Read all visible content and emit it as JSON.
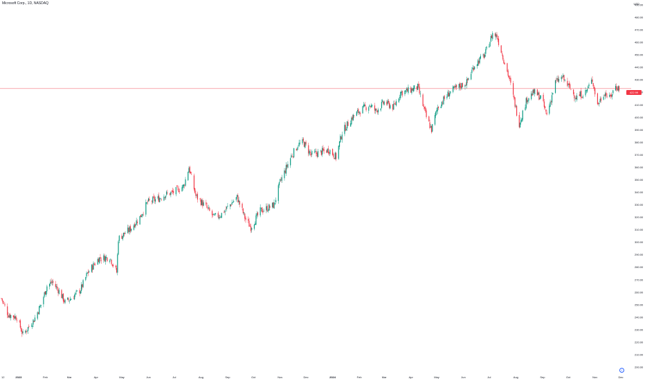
{
  "header": {
    "title": "Microsoft Corp., 1D, NASDAQ",
    "currency": "USD"
  },
  "last_price_label": "422.99",
  "scroll_button_icon": "arrow-right-icon",
  "colors": {
    "up": "#089981",
    "down": "#f23645",
    "price_line": "#f23645",
    "text": "#131722"
  },
  "chart_data": {
    "type": "candlestick",
    "ylim": [
      200,
      490
    ],
    "y_ticks": [
      "490.00",
      "480.00",
      "470.00",
      "460.00",
      "450.00",
      "440.00",
      "430.00",
      "420.00",
      "410.00",
      "400.00",
      "390.00",
      "380.00",
      "370.00",
      "360.00",
      "350.00",
      "340.00",
      "330.00",
      "320.00",
      "310.00",
      "300.00",
      "290.00",
      "280.00",
      "270.00",
      "260.00",
      "250.00",
      "240.00",
      "230.00",
      "220.00",
      "210.00",
      "200.00"
    ],
    "x_ticks": [
      "12",
      "2023",
      "Feb",
      "Mar",
      "Apr",
      "May",
      "Jun",
      "Jul",
      "Aug",
      "Sep",
      "Oct",
      "Nov",
      "Dec",
      "2024",
      "Feb",
      "Mar",
      "Apr",
      "May",
      "Jun",
      "Jul",
      "Aug",
      "Sep",
      "Oct",
      "Nov",
      "Dec"
    ],
    "last_price": 422.99,
    "trend": [
      [
        "2022-12-12",
        255
      ],
      [
        "2022-12-20",
        242
      ],
      [
        "2022-12-30",
        240
      ],
      [
        "2023-01-06",
        226
      ],
      [
        "2023-01-19",
        238
      ],
      [
        "2023-01-27",
        250
      ],
      [
        "2023-02-03",
        265
      ],
      [
        "2023-02-09",
        268
      ],
      [
        "2023-02-16",
        262
      ],
      [
        "2023-02-24",
        252
      ],
      [
        "2023-03-03",
        255
      ],
      [
        "2023-03-14",
        262
      ],
      [
        "2023-03-22",
        275
      ],
      [
        "2023-04-04",
        287
      ],
      [
        "2023-04-17",
        288
      ],
      [
        "2023-04-25",
        276
      ],
      [
        "2023-04-27",
        303
      ],
      [
        "2023-05-10",
        310
      ],
      [
        "2023-05-22",
        320
      ],
      [
        "2023-05-31",
        332
      ],
      [
        "2023-06-13",
        335
      ],
      [
        "2023-06-20",
        338
      ],
      [
        "2023-06-30",
        340
      ],
      [
        "2023-07-12",
        345
      ],
      [
        "2023-07-18",
        360
      ],
      [
        "2023-07-26",
        337
      ],
      [
        "2023-08-07",
        328
      ],
      [
        "2023-08-16",
        320
      ],
      [
        "2023-08-24",
        322
      ],
      [
        "2023-09-01",
        328
      ],
      [
        "2023-09-12",
        336
      ],
      [
        "2023-09-22",
        318
      ],
      [
        "2023-09-28",
        312
      ],
      [
        "2023-10-09",
        325
      ],
      [
        "2023-10-20",
        328
      ],
      [
        "2023-10-25",
        330
      ],
      [
        "2023-11-01",
        348
      ],
      [
        "2023-11-14",
        369
      ],
      [
        "2023-11-22",
        378
      ],
      [
        "2023-11-28",
        380
      ],
      [
        "2023-12-07",
        370
      ],
      [
        "2023-12-18",
        372
      ],
      [
        "2023-12-28",
        374
      ],
      [
        "2024-01-05",
        368
      ],
      [
        "2024-01-12",
        388
      ],
      [
        "2024-01-24",
        400
      ],
      [
        "2024-02-01",
        405
      ],
      [
        "2024-02-13",
        410
      ],
      [
        "2024-02-20",
        405
      ],
      [
        "2024-03-01",
        412
      ],
      [
        "2024-03-12",
        408
      ],
      [
        "2024-03-20",
        420
      ],
      [
        "2024-03-28",
        421
      ],
      [
        "2024-04-09",
        424
      ],
      [
        "2024-04-19",
        400
      ],
      [
        "2024-04-25",
        390
      ],
      [
        "2024-05-02",
        408
      ],
      [
        "2024-05-16",
        420
      ],
      [
        "2024-05-28",
        425
      ],
      [
        "2024-06-05",
        428
      ],
      [
        "2024-06-14",
        442
      ],
      [
        "2024-06-26",
        450
      ],
      [
        "2024-07-05",
        467
      ],
      [
        "2024-07-10",
        465
      ],
      [
        "2024-07-24",
        432
      ],
      [
        "2024-08-05",
        395
      ],
      [
        "2024-08-14",
        415
      ],
      [
        "2024-08-22",
        420
      ],
      [
        "2024-08-30",
        416
      ],
      [
        "2024-09-06",
        402
      ],
      [
        "2024-09-16",
        428
      ],
      [
        "2024-09-24",
        432
      ],
      [
        "2024-10-01",
        425
      ],
      [
        "2024-10-10",
        416
      ],
      [
        "2024-10-21",
        420
      ],
      [
        "2024-10-29",
        430
      ],
      [
        "2024-11-04",
        410
      ],
      [
        "2024-11-12",
        420
      ],
      [
        "2024-11-18",
        415
      ],
      [
        "2024-11-25",
        425
      ],
      [
        "2024-11-29",
        422.99
      ]
    ]
  }
}
